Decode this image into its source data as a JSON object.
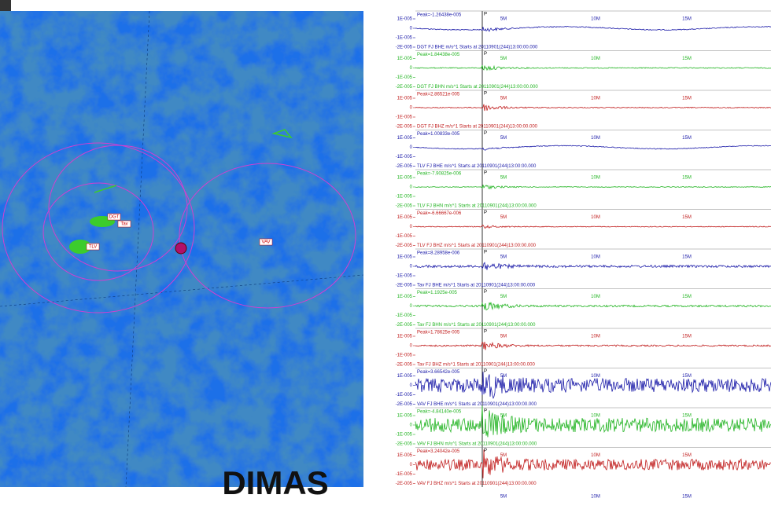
{
  "title": "DIMAS",
  "map": {
    "labels": [
      "DGT",
      "Tav",
      "TLV",
      "VAV"
    ]
  },
  "axis_labels": [
    "1E-005",
    "0",
    "-1E-005",
    "-2E-005"
  ],
  "time_labels": [
    "5M",
    "10M",
    "15M"
  ],
  "p_marker": "P",
  "traces": [
    {
      "peak": "Peak=-1.26438e-005",
      "station": "DGT FJ BHE  m/s^1 Starts at 20110901(244)13:00:00.000",
      "color": "#1a1aa8"
    },
    {
      "peak": "Peak=1.84438e-005",
      "station": "DGT FJ BHN  m/s^1 Starts at 20110901(244)13:00:00.000",
      "color": "#22b422"
    },
    {
      "peak": "Peak=2.86521e-005",
      "station": "DGT FJ BHZ  m/s^1 Starts at 20110901(244)13:00:00.000",
      "color": "#c01c1c"
    },
    {
      "peak": "Peak=1.00833e-005",
      "station": "TLV FJ BHE  m/s^1 Starts at 20110901(244)13:00:00.000",
      "color": "#1a1aa8"
    },
    {
      "peak": "Peak=-7.90825e-006",
      "station": "TLV FJ BHN  m/s^1 Starts at 20110901(244)13:00:00.000",
      "color": "#22b422"
    },
    {
      "peak": "Peak=-6.66667e-006",
      "station": "TLV FJ BHZ  m/s^1 Starts at 20110901(244)13:00:00.000",
      "color": "#c01c1c"
    },
    {
      "peak": "Peak=8.28958e-006",
      "station": "Tav FJ BHE  m/s^1 Starts at 20110901(244)13:00:00.000",
      "color": "#1a1aa8"
    },
    {
      "peak": "Peak=1.1925e-005",
      "station": "Tav FJ BHN  m/s^1 Starts at 20110901(244)13:00:00.000",
      "color": "#22b422"
    },
    {
      "peak": "Peak=1.78625e-005",
      "station": "Tav FJ BHZ  m/s^1 Starts at 20110901(244)13:00:00.000",
      "color": "#c01c1c"
    },
    {
      "peak": "Peak=3.66542e-005",
      "station": "VAV FJ BHE  m/s^1 Starts at 20110901(244)13:00:00.000",
      "color": "#1a1aa8"
    },
    {
      "peak": "Peak=-4.84140e-005",
      "station": "VAV FJ BHN  m/s^1 Starts at 20110901(244)13:00:00.000",
      "color": "#22b422"
    },
    {
      "peak": "Peak=3.24042e-005",
      "station": "VAV FJ BHZ  m/s^1 Starts at 20110901(244)13:00:00.000",
      "color": "#c01c1c"
    }
  ]
}
